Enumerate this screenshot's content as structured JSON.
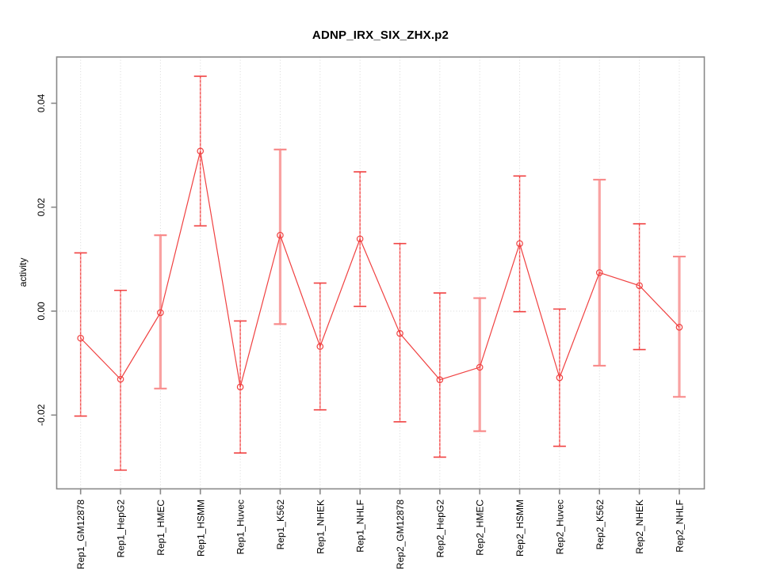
{
  "chart_data": {
    "type": "line",
    "title": "ADNP_IRX_SIX_ZHX.p2",
    "ylabel": "activity",
    "xlabel": "",
    "legend_position": "none",
    "grid": {
      "vertical": "dotted gridline at every category",
      "horizontal": "dotted gridline at y=0 only"
    },
    "ylim": [
      -0.0342,
      0.0489
    ],
    "yticks": [
      -0.02,
      0,
      0.02,
      0.04
    ],
    "ytick_labels": [
      "-0.02",
      "0.00",
      "0.02",
      "0.04"
    ],
    "categories": [
      "Rep1_GM12878",
      "Rep1_HepG2",
      "Rep1_HMEC",
      "Rep1_HSMM",
      "Rep1_Huvec",
      "Rep1_K562",
      "Rep1_NHEK",
      "Rep1_NHLF",
      "Rep2_GM12878",
      "Rep2_HepG2",
      "Rep2_HMEC",
      "Rep2_HSMM",
      "Rep2_Huvec",
      "Rep2_K562",
      "Rep2_NHEK",
      "Rep2_NHLF"
    ],
    "series": [
      {
        "name": "activity",
        "marker": "open-circle",
        "values": [
          -0.0052,
          -0.0131,
          -0.0003,
          0.0308,
          -0.0146,
          0.0146,
          -0.0068,
          0.0139,
          -0.0043,
          -0.0132,
          -0.0108,
          0.013,
          -0.0128,
          0.0074,
          0.0049,
          -0.0031
        ],
        "ci_low": [
          -0.0202,
          -0.0306,
          -0.0149,
          0.0164,
          -0.0273,
          -0.0025,
          -0.019,
          0.0009,
          -0.0213,
          -0.0281,
          -0.0231,
          -0.0001,
          -0.026,
          -0.0105,
          -0.0074,
          -0.0165
        ],
        "ci_high": [
          0.0112,
          0.004,
          0.0146,
          0.0452,
          -0.0019,
          0.0311,
          0.0054,
          0.0268,
          0.013,
          0.0035,
          0.0025,
          0.026,
          0.0004,
          0.0253,
          0.0168,
          0.0105
        ],
        "thick_error_bar": [
          false,
          false,
          true,
          false,
          false,
          true,
          false,
          false,
          false,
          false,
          true,
          false,
          false,
          true,
          false,
          true
        ]
      }
    ],
    "colors": {
      "line": "#f04141",
      "point": "#f04141",
      "error_bar": "#f9a2a2",
      "error_bar_cap": "#f04141",
      "error_bar_cap_thick": "#f88b8b",
      "grid": "#d7d7d7",
      "frame": "#898989",
      "text": "#000000",
      "background": "#ffffff"
    }
  }
}
